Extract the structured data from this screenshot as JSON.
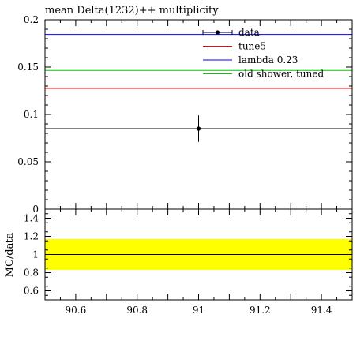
{
  "chart_data": {
    "type": "line",
    "title": "mean Delta(1232)++ multiplicity",
    "xlim": [
      90.5,
      91.5
    ],
    "x_ticks": [
      "90.6",
      "90.8",
      "91",
      "91.2",
      "91.4"
    ],
    "x_tick_values": [
      90.6,
      90.8,
      91.0,
      91.2,
      91.4
    ],
    "main": {
      "ylim": [
        0,
        0.2
      ],
      "y_ticks": [
        "0",
        "0.05",
        "0.1",
        "0.15",
        "0.2"
      ],
      "y_tick_values": [
        0,
        0.05,
        0.1,
        0.15,
        0.2
      ],
      "data_point": {
        "label": "data",
        "x": 91.0,
        "y": 0.085,
        "yerr": 0.014,
        "color": "#000000"
      },
      "series": [
        {
          "name": "tune5",
          "value": 0.1275,
          "color": "#ff0000"
        },
        {
          "name": "lambda 0.23",
          "value": 0.1845,
          "color": "#0000ff"
        },
        {
          "name": "old shower, tuned",
          "value": 0.1465,
          "color": "#00cc00"
        },
        {
          "name": "",
          "value": 0.085,
          "color": "#000000"
        }
      ]
    },
    "ratio": {
      "ylabel": "MC/data",
      "ylim": [
        0.5,
        1.5
      ],
      "y_ticks": [
        "0.6",
        "0.8",
        "1",
        "1.2",
        "1.4"
      ],
      "y_tick_values": [
        0.6,
        0.8,
        1.0,
        1.2,
        1.4
      ],
      "band": {
        "low": 0.83,
        "high": 1.17,
        "color": "#ffff00"
      },
      "reference_line": 1.0
    },
    "legend": [
      {
        "label": "data",
        "color": "#000000",
        "marker": "point"
      },
      {
        "label": "tune5",
        "color": "#ff0000",
        "marker": "line"
      },
      {
        "label": "lambda 0.23",
        "color": "#0000ff",
        "marker": "line"
      },
      {
        "label": "old shower, tuned",
        "color": "#00cc00",
        "marker": "line"
      }
    ],
    "legend_position": "top-right",
    "grid": false
  }
}
